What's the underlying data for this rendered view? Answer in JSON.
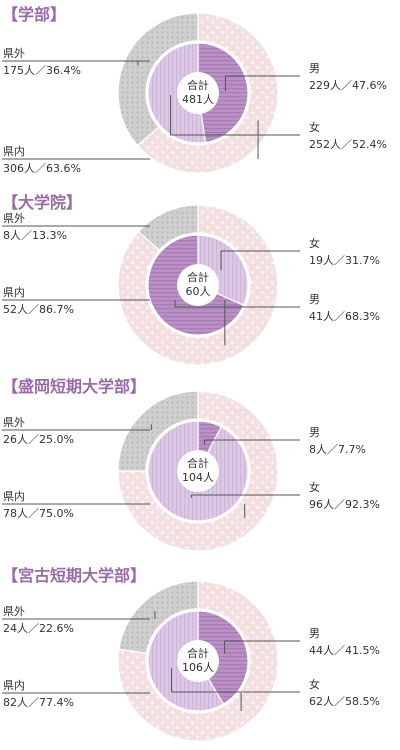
{
  "colors": {
    "accent": "#9B6BA8",
    "outer_prefecture": "#F3DFDF",
    "outer_outside": "#CFCFCF",
    "inner_male": "#B890C4",
    "inner_female": "#DBC8E4",
    "text": "#333333",
    "line": "#555555"
  },
  "chart_data": [
    {
      "type": "pie",
      "title": "【学部】",
      "center_label": [
        "合計",
        "481人"
      ],
      "outer": {
        "slices": [
          {
            "name": "県外",
            "count": 175,
            "percent": 36.4,
            "text": "175人／36.4%"
          },
          {
            "name": "県内",
            "count": 306,
            "percent": 63.6,
            "text": "306人／63.6%"
          }
        ]
      },
      "inner": {
        "slices": [
          {
            "name": "男",
            "count": 229,
            "percent": 47.6,
            "text": "229人／47.6%"
          },
          {
            "name": "女",
            "count": 252,
            "percent": 52.4,
            "text": "252人／52.4%"
          }
        ]
      }
    },
    {
      "type": "pie",
      "title": "【大学院】",
      "center_label": [
        "合計",
        "60人"
      ],
      "outer": {
        "slices": [
          {
            "name": "県外",
            "count": 8,
            "percent": 13.3,
            "text": "8人／13.3%"
          },
          {
            "name": "県内",
            "count": 52,
            "percent": 86.7,
            "text": "52人／86.7%"
          }
        ]
      },
      "inner": {
        "slices": [
          {
            "name": "女",
            "count": 19,
            "percent": 31.7,
            "text": "19人／31.7%"
          },
          {
            "name": "男",
            "count": 41,
            "percent": 68.3,
            "text": "41人／68.3%"
          }
        ]
      }
    },
    {
      "type": "pie",
      "title": "【盛岡短期大学部】",
      "center_label": [
        "合計",
        "104人"
      ],
      "outer": {
        "slices": [
          {
            "name": "県外",
            "count": 26,
            "percent": 25.0,
            "text": "26人／25.0%"
          },
          {
            "name": "県内",
            "count": 78,
            "percent": 75.0,
            "text": "78人／75.0%"
          }
        ]
      },
      "inner": {
        "slices": [
          {
            "name": "男",
            "count": 8,
            "percent": 7.7,
            "text": "8人／7.7%"
          },
          {
            "name": "女",
            "count": 96,
            "percent": 92.3,
            "text": "96人／92.3%"
          }
        ]
      }
    },
    {
      "type": "pie",
      "title": "【宮古短期大学部】",
      "center_label": [
        "合計",
        "106人"
      ],
      "outer": {
        "slices": [
          {
            "name": "県外",
            "count": 24,
            "percent": 22.6,
            "text": "24人／22.6%"
          },
          {
            "name": "県内",
            "count": 82,
            "percent": 77.4,
            "text": "82人／77.4%"
          }
        ]
      },
      "inner": {
        "slices": [
          {
            "name": "男",
            "count": 44,
            "percent": 41.5,
            "text": "44人／41.5%"
          },
          {
            "name": "女",
            "count": 62,
            "percent": 58.5,
            "text": "62人／58.5%"
          }
        ]
      }
    }
  ]
}
